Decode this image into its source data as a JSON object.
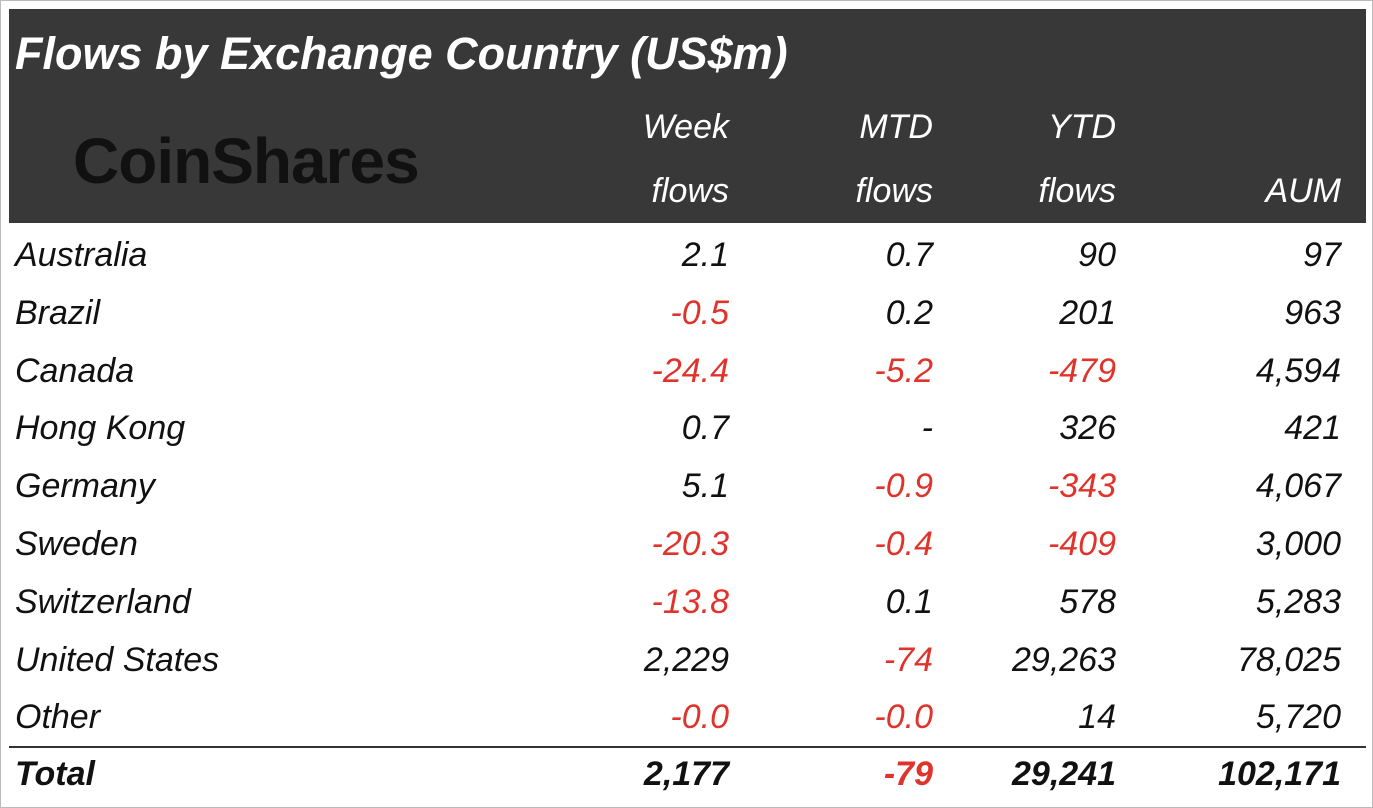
{
  "header": {
    "title": "Flows by Exchange Country (US$m)",
    "logo": "CoinShares"
  },
  "table": {
    "columns": [
      [
        "Week",
        "flows"
      ],
      [
        "MTD",
        "flows"
      ],
      [
        "YTD",
        "flows"
      ],
      [
        "AUM"
      ]
    ],
    "rows": [
      [
        "Australia",
        "2.1",
        "0.7",
        "90",
        "97"
      ],
      [
        "Brazil",
        "-0.5",
        "0.2",
        "201",
        "963"
      ],
      [
        "Canada",
        "-24.4",
        "-5.2",
        "-479",
        "4,594"
      ],
      [
        "Hong Kong",
        "0.7",
        "-",
        "326",
        "421"
      ],
      [
        "Germany",
        "5.1",
        "-0.9",
        "-343",
        "4,067"
      ],
      [
        "Sweden",
        "-20.3",
        "-0.4",
        "-409",
        "3,000"
      ],
      [
        "Switzerland",
        "-13.8",
        "0.1",
        "578",
        "5,283"
      ],
      [
        "United States",
        "2,229",
        "-74",
        "29,263",
        "78,025"
      ],
      [
        "Other",
        "-0.0",
        "-0.0",
        "14",
        "5,720"
      ]
    ],
    "total": [
      "Total",
      "2,177",
      "-79",
      "29,241",
      "102,171"
    ],
    "negative_color": "#e0332b"
  }
}
